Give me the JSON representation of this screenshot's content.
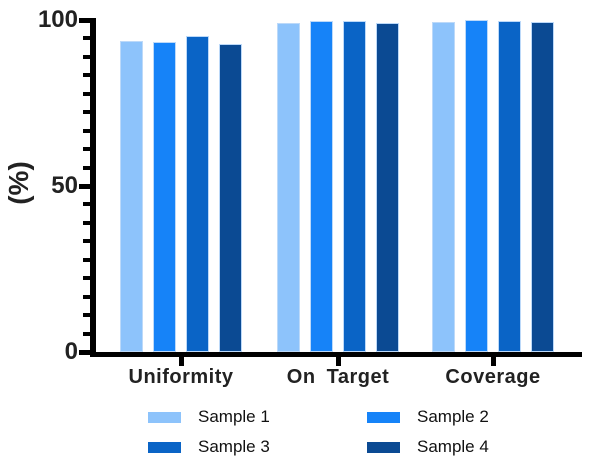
{
  "figure": {
    "background": "#ffffff"
  },
  "chart_data": {
    "type": "bar",
    "title": "",
    "xlabel": "",
    "ylabel": "(%)",
    "ylim": [
      0,
      100
    ],
    "yticks": [
      0,
      50,
      100
    ],
    "minor_ticks_between_majors": 8,
    "grid": false,
    "legend_position": "bottom",
    "categories": [
      "Uniformity",
      "On Target",
      "Coverage"
    ],
    "series": [
      {
        "name": "Sample 1",
        "color": "#8DC3FB",
        "values": [
          93.8,
          99.2,
          99.4
        ]
      },
      {
        "name": "Sample 2",
        "color": "#1683F8",
        "values": [
          93.3,
          99.8,
          99.9
        ]
      },
      {
        "name": "Sample 3",
        "color": "#0A64C6",
        "values": [
          95.2,
          99.7,
          99.7
        ]
      },
      {
        "name": "Sample 4",
        "color": "#0B4A93",
        "values": [
          92.8,
          99.1,
          99.3
        ]
      }
    ],
    "axis_color": "#000000",
    "text_color": "#222222",
    "bar_edge_color": "#BCD9F9"
  }
}
